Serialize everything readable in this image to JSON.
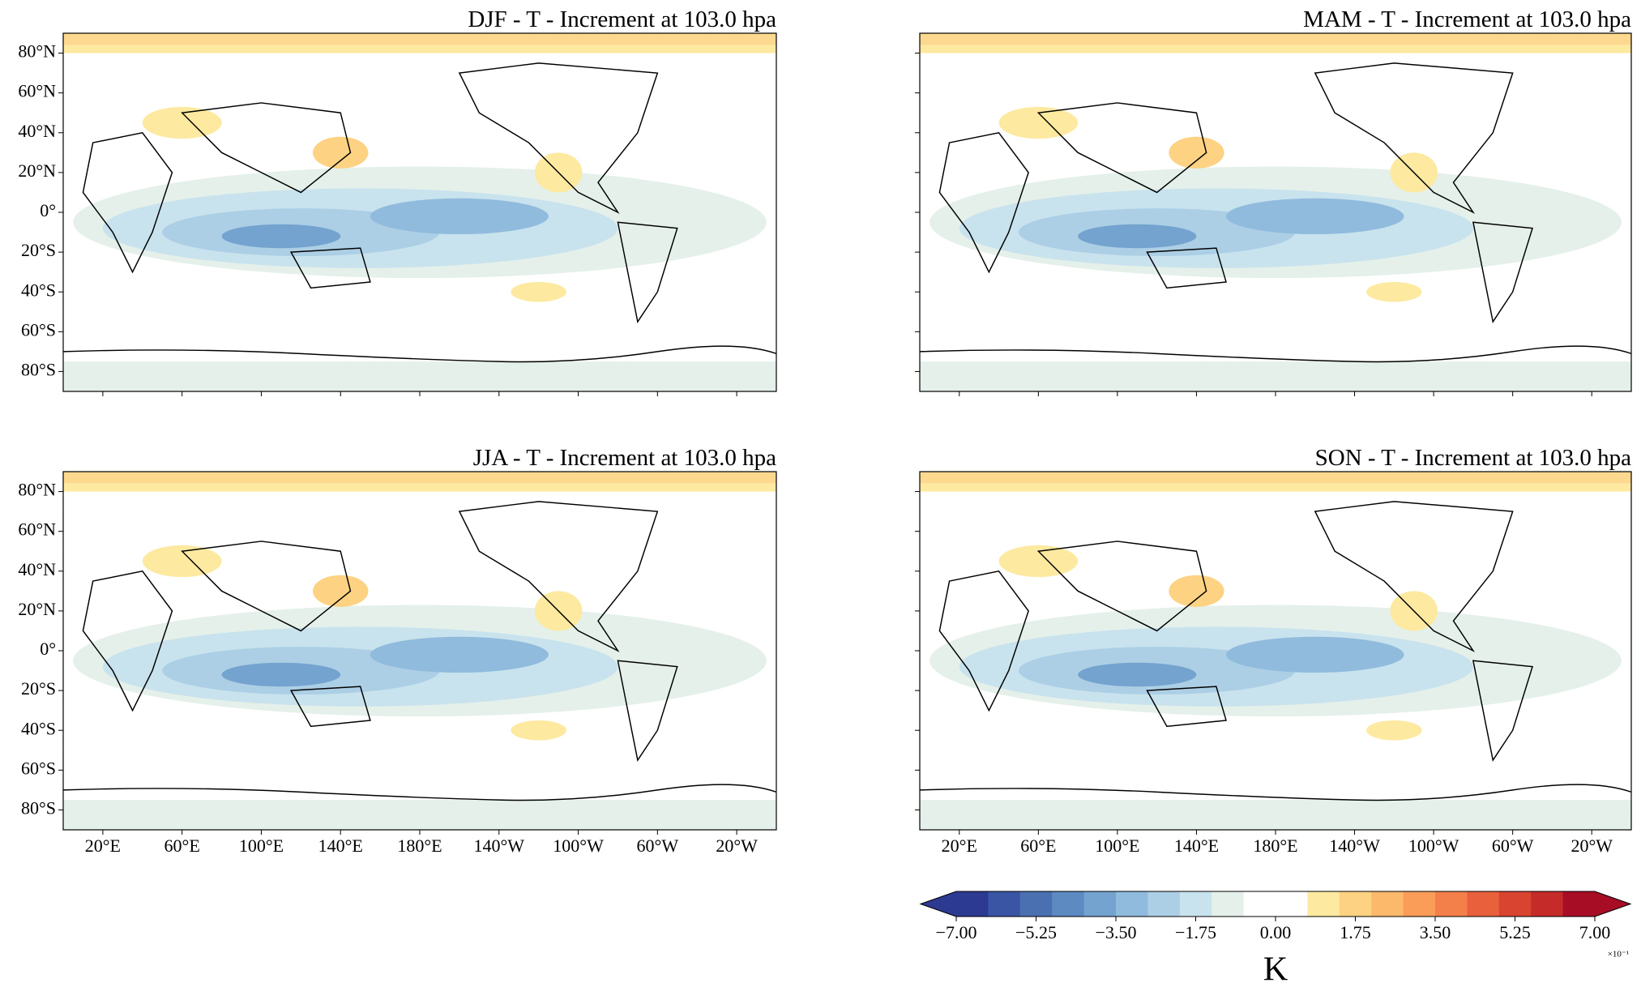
{
  "panels": [
    {
      "title": "DJF - T - Increment at 103.0 hpa"
    },
    {
      "title": "MAM - T - Increment at 103.0 hpa"
    },
    {
      "title": "JJA - T - Increment at 103.0 hpa"
    },
    {
      "title": "SON - T - Increment at 103.0 hpa"
    }
  ],
  "lat_ticks": [
    {
      "value": 80,
      "label": "80°N"
    },
    {
      "value": 60,
      "label": "60°N"
    },
    {
      "value": 40,
      "label": "40°N"
    },
    {
      "value": 20,
      "label": "20°N"
    },
    {
      "value": 0,
      "label": "0°"
    },
    {
      "value": -20,
      "label": "20°S"
    },
    {
      "value": -40,
      "label": "40°S"
    },
    {
      "value": -60,
      "label": "60°S"
    },
    {
      "value": -80,
      "label": "80°S"
    }
  ],
  "lon_ticks": [
    {
      "value": 20,
      "label": "20°E"
    },
    {
      "value": 60,
      "label": "60°E"
    },
    {
      "value": 100,
      "label": "100°E"
    },
    {
      "value": 140,
      "label": "140°E"
    },
    {
      "value": 180,
      "label": "180°E"
    },
    {
      "value": -140,
      "label": "140°W"
    },
    {
      "value": -100,
      "label": "100°W"
    },
    {
      "value": -60,
      "label": "60°W"
    },
    {
      "value": -20,
      "label": "20°W"
    }
  ],
  "colorbar": {
    "label": "K",
    "multiplier": "×10⁻¹",
    "range": [
      -7,
      7
    ],
    "colors": [
      "#2c3a92",
      "#3a55a3",
      "#4a70b2",
      "#5d8ac1",
      "#74a3cf",
      "#90bbdc",
      "#accfe6",
      "#c8e2ee",
      "#e4f0e9",
      "#ffffff",
      "#ffffff",
      "#fde9a0",
      "#fdd283",
      "#fcb96b",
      "#f99d59",
      "#f3804a",
      "#e8613c",
      "#d84430",
      "#c42b29",
      "#a80d26"
    ],
    "ticks": [
      {
        "value": -7,
        "label": "−7.00"
      },
      {
        "value": -5.25,
        "label": "−5.25"
      },
      {
        "value": -3.5,
        "label": "−3.50"
      },
      {
        "value": -1.75,
        "label": "−1.75"
      },
      {
        "value": 0,
        "label": "0.00"
      },
      {
        "value": 1.75,
        "label": "1.75"
      },
      {
        "value": 3.5,
        "label": "3.50"
      },
      {
        "value": 5.25,
        "label": "5.25"
      },
      {
        "value": 7,
        "label": "7.00"
      }
    ]
  }
}
